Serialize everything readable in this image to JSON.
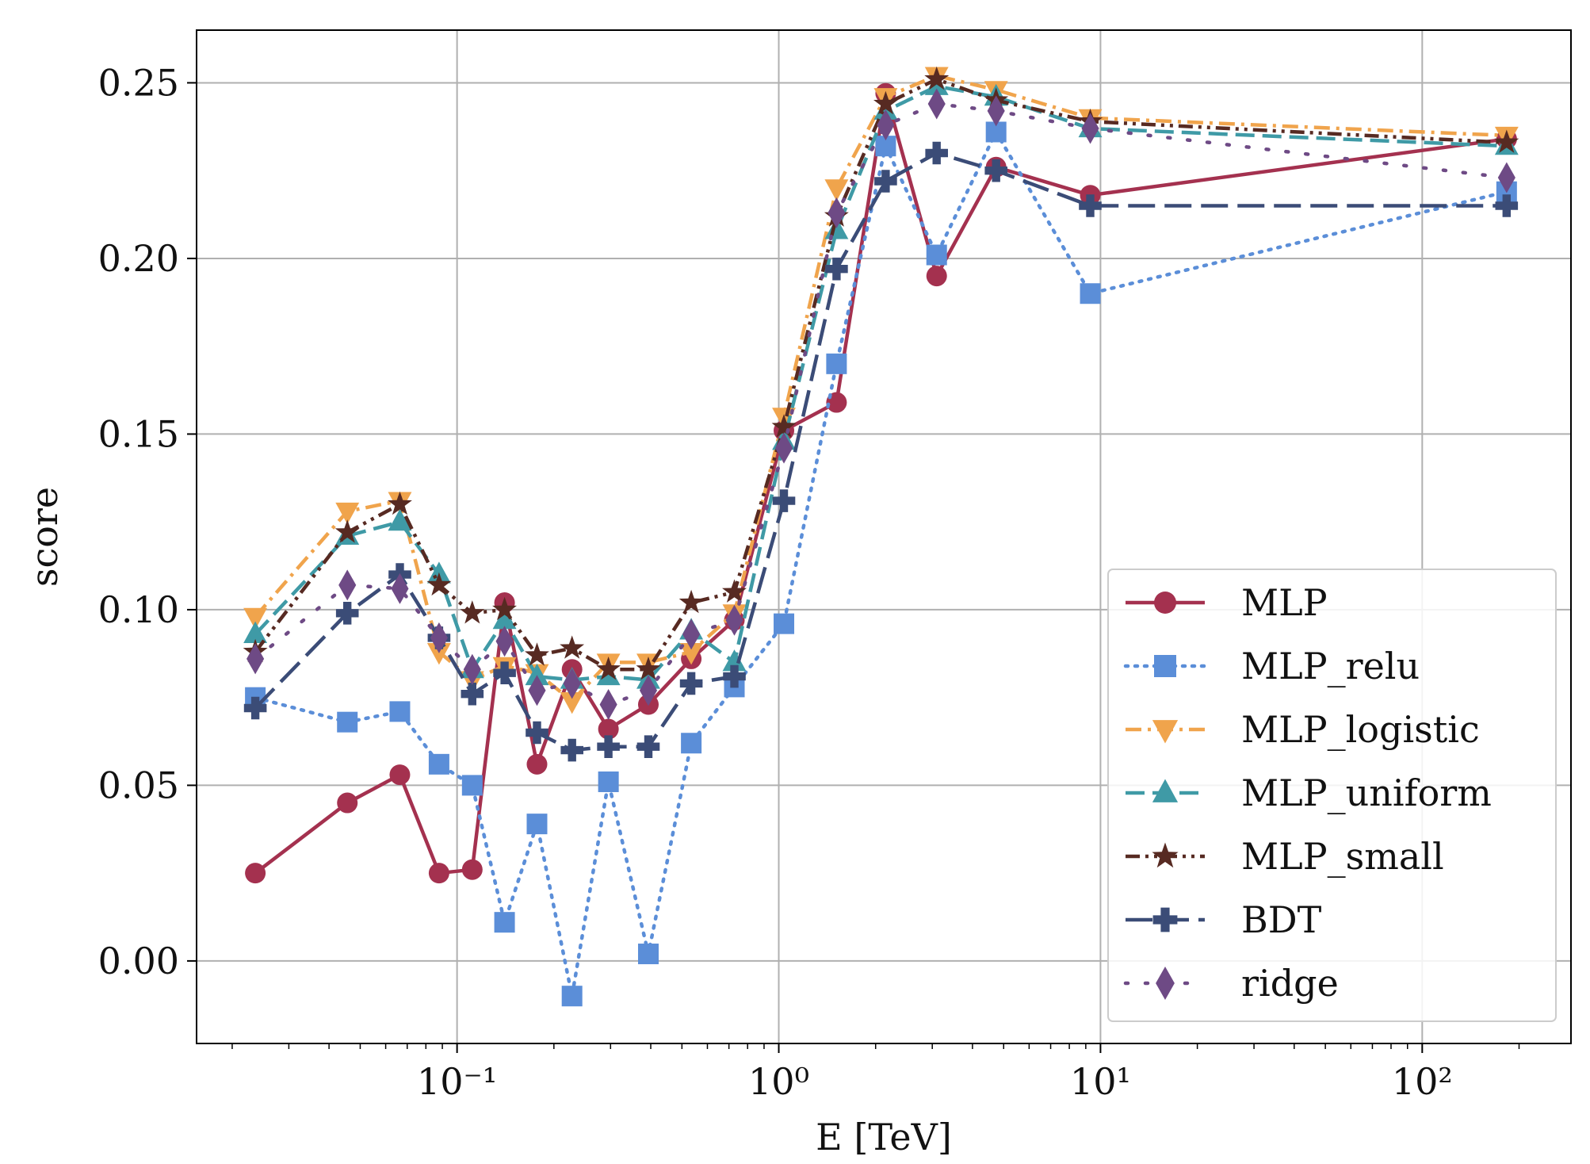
{
  "chart_data": {
    "type": "line",
    "xlabel": "E [TeV]",
    "ylabel": "score",
    "xscale": "log",
    "xlim": [
      0.0155,
      290
    ],
    "ylim": [
      -0.0235,
      0.265
    ],
    "grid": true,
    "legend_position": "lower-right",
    "x": [
      0.0236,
      0.0456,
      0.0664,
      0.0879,
      0.1115,
      0.1405,
      0.1772,
      0.2277,
      0.2955,
      0.3932,
      0.5345,
      0.7277,
      1.0375,
      1.5118,
      2.1493,
      3.0957,
      4.7364,
      9.2955,
      183.0
    ],
    "x_tick_labels": [
      "10⁻¹",
      "10⁰",
      "10¹",
      "10²"
    ],
    "x_tick_values": [
      0.1,
      1,
      10,
      100
    ],
    "y_tick_labels": [
      "0.00",
      "0.05",
      "0.10",
      "0.15",
      "0.20",
      "0.25"
    ],
    "y_tick_values": [
      0.0,
      0.05,
      0.1,
      0.15,
      0.2,
      0.25
    ],
    "series": [
      {
        "name": "MLP",
        "color": "#a4314f",
        "linestyle": "solid",
        "marker": "circle",
        "values": [
          0.025,
          0.045,
          0.053,
          0.025,
          0.026,
          0.102,
          0.056,
          0.083,
          0.066,
          0.073,
          0.086,
          0.097,
          0.151,
          0.159,
          0.247,
          0.195,
          0.226,
          0.218,
          0.234
        ]
      },
      {
        "name": "MLP_relu",
        "color": "#5b8ed8",
        "linestyle": "dotted",
        "marker": "square",
        "values": [
          0.075,
          0.068,
          0.071,
          0.056,
          0.05,
          0.011,
          0.039,
          -0.01,
          0.051,
          0.002,
          0.062,
          0.078,
          0.096,
          0.17,
          0.232,
          0.201,
          0.236,
          0.19,
          0.219
        ]
      },
      {
        "name": "MLP_logistic",
        "color": "#f0a44c",
        "linestyle": "dashdot",
        "marker": "triangle-down",
        "values": [
          0.098,
          0.128,
          0.131,
          0.088,
          0.08,
          0.084,
          0.082,
          0.074,
          0.085,
          0.085,
          0.088,
          0.099,
          0.155,
          0.22,
          0.246,
          0.252,
          0.248,
          0.24,
          0.235
        ]
      },
      {
        "name": "MLP_uniform",
        "color": "#3f9aa6",
        "linestyle": "dashed",
        "marker": "triangle-up",
        "values": [
          0.093,
          0.121,
          0.125,
          0.11,
          0.083,
          0.097,
          0.081,
          0.08,
          0.081,
          0.08,
          0.094,
          0.085,
          0.148,
          0.208,
          0.242,
          0.249,
          0.246,
          0.237,
          0.232
        ]
      },
      {
        "name": "MLP_small",
        "color": "#572a22",
        "linestyle": "dashdotdot",
        "marker": "star",
        "values": [
          0.088,
          0.122,
          0.13,
          0.107,
          0.099,
          0.1,
          0.087,
          0.089,
          0.083,
          0.083,
          0.102,
          0.105,
          0.152,
          0.212,
          0.244,
          0.251,
          0.245,
          0.239,
          0.233
        ]
      },
      {
        "name": "BDT",
        "color": "#3b4c77",
        "linestyle": "longdash",
        "marker": "plus-filled",
        "values": [
          0.072,
          0.099,
          0.11,
          0.092,
          0.076,
          0.082,
          0.065,
          0.06,
          0.061,
          0.061,
          0.079,
          0.081,
          0.131,
          0.197,
          0.222,
          0.23,
          0.225,
          0.215,
          0.215
        ]
      },
      {
        "name": "ridge",
        "color": "#6e4a85",
        "linestyle": "sparse-dotted",
        "marker": "thin-diamond",
        "values": [
          0.086,
          0.107,
          0.106,
          0.092,
          0.083,
          0.091,
          0.077,
          0.079,
          0.073,
          0.077,
          0.093,
          0.097,
          0.146,
          0.213,
          0.238,
          0.244,
          0.242,
          0.237,
          0.223
        ]
      }
    ]
  }
}
